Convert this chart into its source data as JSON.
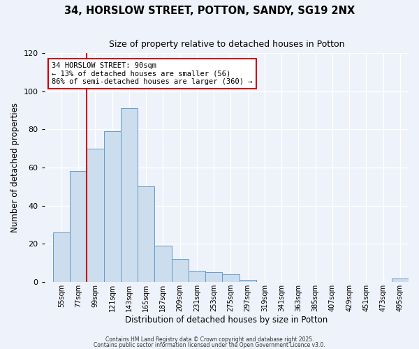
{
  "title": "34, HORSLOW STREET, POTTON, SANDY, SG19 2NX",
  "subtitle": "Size of property relative to detached houses in Potton",
  "xlabel": "Distribution of detached houses by size in Potton",
  "ylabel": "Number of detached properties",
  "bar_color": "#ccdded",
  "bar_edge_color": "#6699cc",
  "background_color": "#eef2fa",
  "grid_color": "#ffffff",
  "categories": [
    "55sqm",
    "77sqm",
    "99sqm",
    "121sqm",
    "143sqm",
    "165sqm",
    "187sqm",
    "209sqm",
    "231sqm",
    "253sqm",
    "275sqm",
    "297sqm",
    "319sqm",
    "341sqm",
    "363sqm",
    "385sqm",
    "407sqm",
    "429sqm",
    "451sqm",
    "473sqm",
    "495sqm"
  ],
  "values": [
    26,
    58,
    70,
    79,
    91,
    50,
    19,
    12,
    6,
    5,
    4,
    1,
    0,
    0,
    0,
    0,
    0,
    0,
    0,
    0,
    2
  ],
  "ylim": [
    0,
    120
  ],
  "yticks": [
    0,
    20,
    40,
    60,
    80,
    100,
    120
  ],
  "vline_color": "#cc0000",
  "vline_position": 2.5,
  "annotation_title": "34 HORSLOW STREET: 90sqm",
  "annotation_line1": "← 13% of detached houses are smaller (56)",
  "annotation_line2": "86% of semi-detached houses are larger (360) →",
  "annotation_box_color": "#ffffff",
  "annotation_box_edge": "#cc0000",
  "footer1": "Contains HM Land Registry data © Crown copyright and database right 2025.",
  "footer2": "Contains public sector information licensed under the Open Government Licence v3.0."
}
